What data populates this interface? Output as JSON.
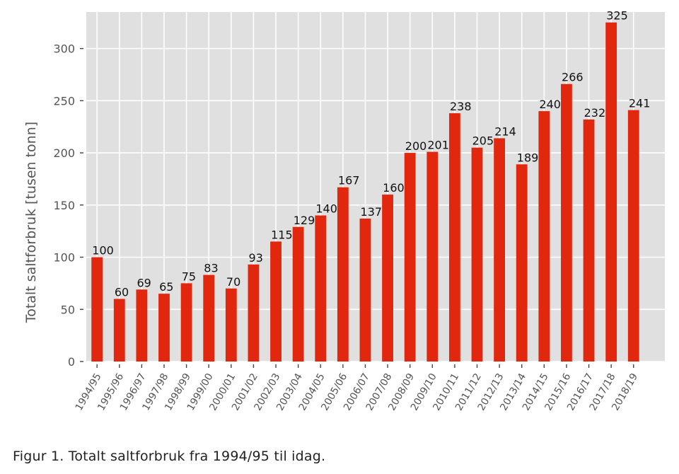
{
  "chart_data": {
    "type": "bar",
    "title": "",
    "xlabel": "",
    "ylabel": "Totalt saltforbruk [tusen tonn]",
    "ylim": [
      0,
      335
    ],
    "yticks": [
      0,
      50,
      100,
      150,
      200,
      250,
      300
    ],
    "grid": true,
    "legend": "none",
    "bar_color": "#e2270f",
    "background_color": "#e0e0e0",
    "categories": [
      "1994/95",
      "1995/96",
      "1996/97",
      "1997/98",
      "1998/99",
      "1999/00",
      "2000/01",
      "2001/02",
      "2002/03",
      "2003/04",
      "2004/05",
      "2005/06",
      "2006/07",
      "2007/08",
      "2008/09",
      "2009/10",
      "2010/11",
      "2011/12",
      "2012/13",
      "2013/14",
      "2014/15",
      "2015/16",
      "2016/17",
      "2017/18",
      "2018/19"
    ],
    "values": [
      100,
      60,
      69,
      65,
      75,
      83,
      70,
      93,
      115,
      129,
      140,
      167,
      137,
      160,
      200,
      201,
      238,
      205,
      214,
      189,
      240,
      266,
      232,
      325,
      241
    ],
    "data_labels": [
      "100",
      "60",
      "69",
      "65",
      "75",
      "83",
      "70",
      "93",
      "115",
      "129",
      "140",
      "167",
      "137",
      "160",
      "200",
      "201",
      "238",
      "205",
      "214",
      "189",
      "240",
      "266",
      "232",
      "325",
      "241"
    ]
  },
  "caption": "Figur 1. Totalt saltforbruk fra 1994/95 til idag."
}
